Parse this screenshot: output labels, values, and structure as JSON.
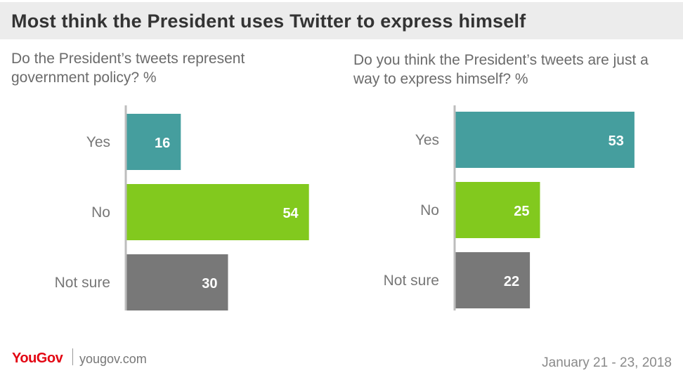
{
  "title": "Most think the President uses Twitter to express himself",
  "footer": {
    "brand": "YouGov",
    "url": "yougov.com",
    "date": "January 21 - 23, 2018"
  },
  "colors": {
    "yes": "#459e9e",
    "no": "#82c91e",
    "not_sure": "#787878",
    "axis": "#bdbdbd"
  },
  "chart_data": [
    {
      "type": "bar",
      "orientation": "horizontal",
      "title": "Do the President’s tweets represent government policy? %",
      "categories": [
        "Yes",
        "No",
        "Not sure"
      ],
      "values": [
        16,
        54,
        30
      ]
    },
    {
      "type": "bar",
      "orientation": "horizontal",
      "title": "Do you think the President’s tweets are just a way to express himself? %",
      "categories": [
        "Yes",
        "No",
        "Not sure"
      ],
      "values": [
        53,
        25,
        22
      ]
    }
  ]
}
